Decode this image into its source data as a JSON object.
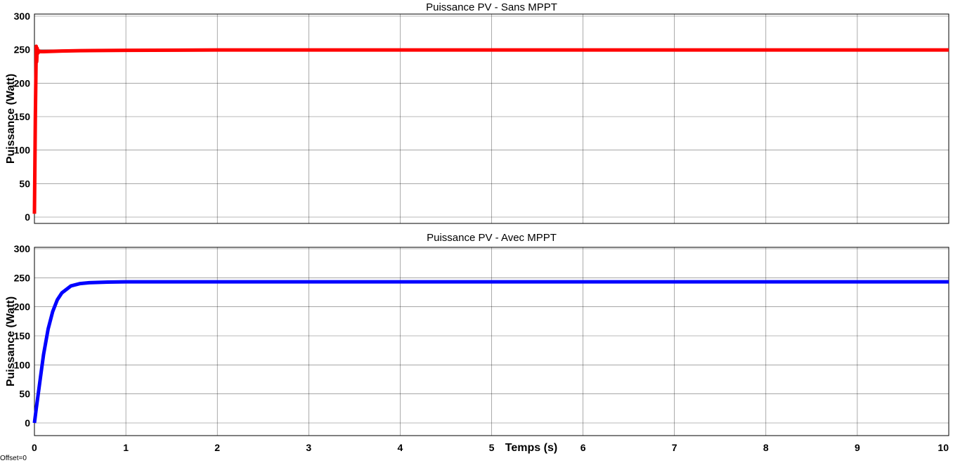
{
  "offset_label": "Offset=0",
  "chart_data": [
    {
      "type": "line",
      "title": "Puissance PV - Sans MPPT",
      "ylabel": "Puissance (Watt)",
      "xlabel": "",
      "xlim": [
        0,
        10
      ],
      "ylim": [
        0,
        300
      ],
      "xticks": [
        "0",
        "1",
        "2",
        "3",
        "4",
        "5",
        "6",
        "7",
        "8",
        "9",
        "10"
      ],
      "yticks": [
        "0",
        "50",
        "100",
        "150",
        "200",
        "250",
        "300"
      ],
      "grid": true,
      "series": [
        {
          "color": "#ff0000",
          "x": [
            0,
            0.01,
            0.02,
            0.025,
            0.03,
            0.04,
            0.05,
            0.07,
            0.1,
            0.3,
            0.5,
            1,
            2,
            3,
            4,
            5,
            6,
            7,
            8,
            9,
            10
          ],
          "y": [
            5,
            150,
            255,
            232,
            252,
            245,
            248,
            247,
            247,
            248,
            248.5,
            249,
            249.5,
            249.5,
            249.5,
            249.5,
            249.5,
            249.5,
            249.5,
            249.5,
            249.5
          ]
        }
      ]
    },
    {
      "type": "line",
      "title": "Puissance PV - Avec MPPT",
      "ylabel": "Puissance (Watt)",
      "xlabel": "Temps (s)",
      "xlim": [
        0,
        10
      ],
      "ylim": [
        0,
        300
      ],
      "xticks": [
        "0",
        "1",
        "2",
        "3",
        "4",
        "5",
        "6",
        "7",
        "8",
        "9",
        "10"
      ],
      "yticks": [
        "0",
        "50",
        "100",
        "150",
        "200",
        "250",
        "300"
      ],
      "grid": true,
      "series": [
        {
          "color": "#0000ff",
          "x": [
            0,
            0.02,
            0.05,
            0.08,
            0.1,
            0.15,
            0.2,
            0.25,
            0.3,
            0.4,
            0.5,
            0.6,
            0.8,
            1,
            1.5,
            2,
            3,
            4,
            5,
            6,
            7,
            8,
            9,
            10
          ],
          "y": [
            0,
            25,
            60,
            95,
            118,
            162,
            192,
            212,
            224,
            236,
            240,
            241.5,
            242.5,
            243,
            243,
            243,
            243,
            243,
            243,
            243,
            243,
            243,
            243,
            243
          ]
        }
      ]
    }
  ]
}
